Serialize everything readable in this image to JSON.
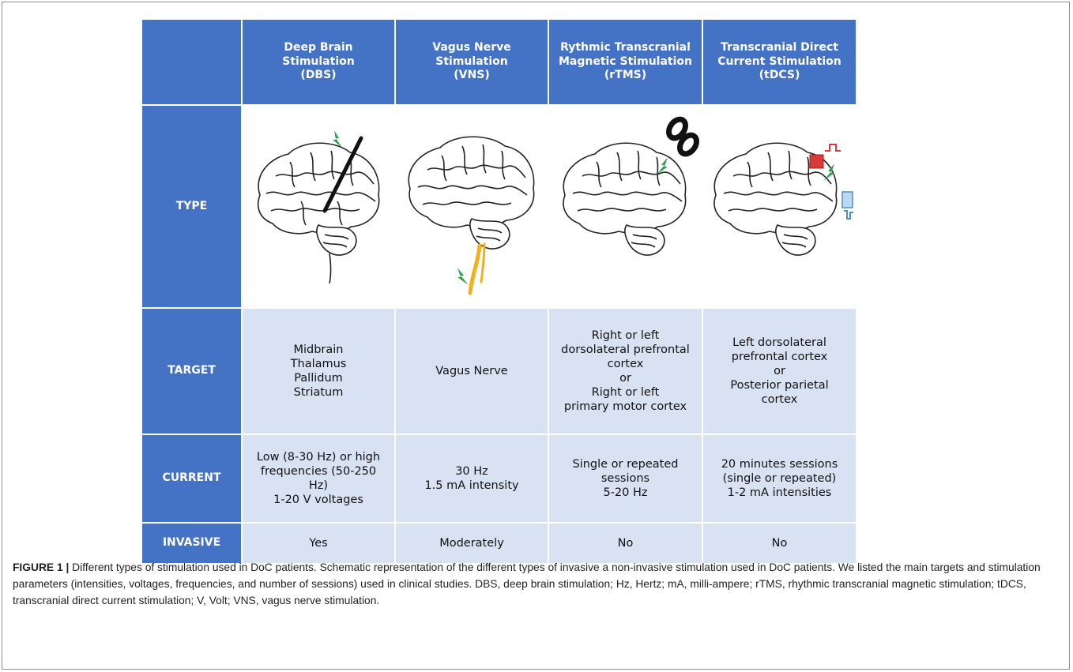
{
  "table": {
    "columns": [
      "Deep Brain\nStimulation\n(DBS)",
      "Vagus Nerve\nStimulation\n(VNS)",
      "Rythmic Transcranial\nMagnetic Stimulation\n(rTMS)",
      "Transcranial Direct\nCurrent Stimulation\n(tDCS)"
    ],
    "rows": {
      "type": "TYPE",
      "target": "TARGET",
      "current": "CURRENT",
      "invasive": "INVASIVE"
    },
    "target": [
      "Midbrain\nThalamus\nPallidum\nStriatum",
      "Vagus Nerve",
      "Right or left\ndorsolateral prefrontal\ncortex\nor\nRight or left\nprimary motor cortex",
      "Left dorsolateral\nprefrontal cortex\nor\nPosterior parietal\ncortex"
    ],
    "current": [
      "Low (8-30 Hz) or high\nfrequencies (50-250\nHz)\n1-20 V voltages",
      "30 Hz\n1.5 mA intensity",
      "Single or repeated\nsessions\n5-20 Hz",
      "20 minutes sessions\n(single or repeated)\n1-2 mA intensities"
    ],
    "invasive": [
      "Yes",
      "Moderately",
      "No",
      "No"
    ]
  },
  "caption": {
    "label": "FIGURE 1 |",
    "text": "Different types of stimulation used in DoC patients. Schematic representation of the different types of invasive a non-invasive stimulation used in DoC patients. We listed the main targets and stimulation parameters (intensities, voltages, frequencies, and number of sessions) used in clinical studies. DBS, deep brain stimulation; Hz, Hertz; mA, milli-ampere; rTMS, rhythmic transcranial magnetic stimulation; tDCS, transcranial direct current stimulation; V, Volt; VNS, vagus nerve stimulation."
  },
  "colors": {
    "header_blue": "#4472c4",
    "cell_light_blue": "#d9e2f3",
    "stimulation_green": "#2e9e4f",
    "nerve_orange": "#f2b01e",
    "anode_red": "#d93a3a",
    "cathode_blue": "#4a90c8"
  },
  "icons": [
    "brain-dbs-icon",
    "brain-vns-icon",
    "brain-rtms-icon",
    "brain-tdcs-icon"
  ]
}
